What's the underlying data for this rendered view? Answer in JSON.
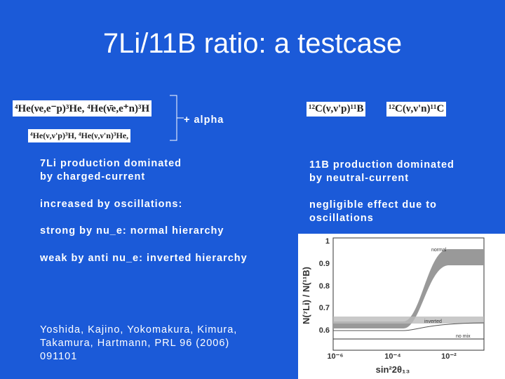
{
  "title": "7Li/11B ratio: a testcase",
  "reactions_left": [
    "⁴He(νe,e⁻p)³He, ⁴He(ν̄e,e⁺n)³H",
    "⁴He(ν,ν'p)³H, ⁴He(ν,ν'n)³He,"
  ],
  "plus_alpha": "+ alpha",
  "reactions_right": [
    "¹²C(ν,ν'p)¹¹B",
    "¹²C(ν,ν'n)¹¹C"
  ],
  "left_text": [
    "7Li production dominated\nby charged-current",
    "increased by oscillations:",
    "strong by nu_e: normal hierarchy",
    "weak by anti nu_e: inverted hierarchy"
  ],
  "citation": "Yoshida, Kajino, Yokomakura, Kimura,\nTakamura, Hartmann, PRL 96 (2006)\n091101",
  "right_text": [
    "11B production dominated\nby neutral-current",
    "negligible effect due to\noscillations"
  ],
  "inset": {
    "y_label": "N(⁷Li) / N(¹¹B)",
    "x_label": "sin²2θ₁₃",
    "y_ticks": [
      "1",
      "0.9",
      "0.8",
      "0.7",
      "0.6"
    ],
    "x_ticks": [
      "10⁻⁶",
      "10⁻⁴",
      "10⁻²"
    ],
    "curve_labels": [
      "normal",
      "inverted",
      "no mix"
    ]
  }
}
